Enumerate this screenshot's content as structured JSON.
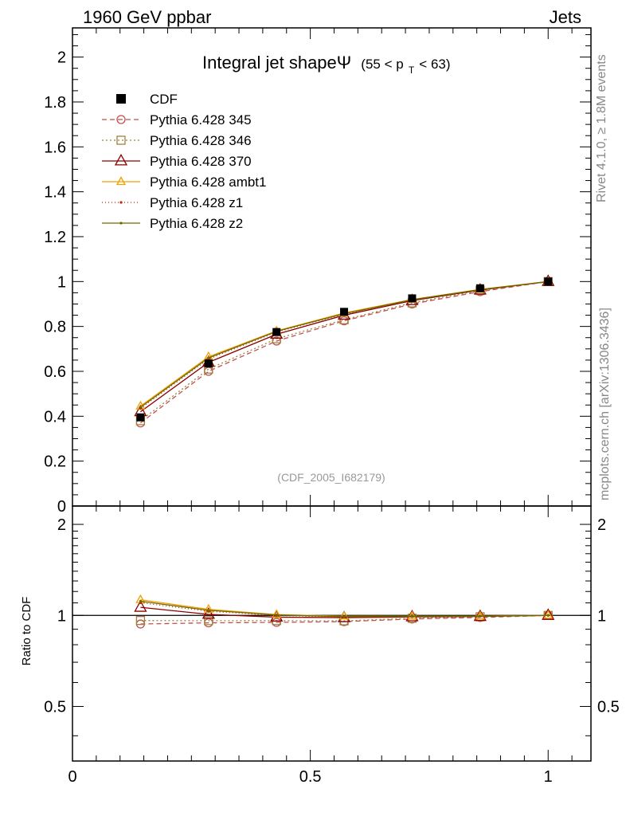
{
  "header": {
    "left": "1960 GeV ppbar",
    "right": "Jets"
  },
  "side": {
    "rivet": "Rivet 4.1.0, ≥ 1.8M events",
    "mcplots": "mcplots.cern.ch [arXiv:1306.3436]"
  },
  "chart_data": {
    "type": "line",
    "title_main": "Integral jet shapeΨ",
    "title_range_open": "(55 < p",
    "title_sub": "T",
    "title_range_close": " < 63)",
    "watermark": "(CDF_2005_I682179)",
    "x": [
      0.143,
      0.286,
      0.429,
      0.571,
      0.714,
      0.857,
      1.0
    ],
    "xlim": [
      0,
      1.09
    ],
    "xticks": [
      "0",
      "0.5",
      "1"
    ],
    "xtick_values": [
      0,
      0.5,
      1
    ],
    "main": {
      "ylim": [
        0,
        2.13
      ],
      "yticks": [
        "0",
        "0.2",
        "0.4",
        "0.6",
        "0.8",
        "1",
        "1.2",
        "1.4",
        "1.6",
        "1.8",
        "2"
      ],
      "ytick_values": [
        0,
        0.2,
        0.4,
        0.6,
        0.8,
        1.0,
        1.2,
        1.4,
        1.6,
        1.8,
        2.0
      ]
    },
    "ratio": {
      "ylabel": "Ratio to CDF",
      "ylim": [
        0.33,
        2.3
      ],
      "yticks": [
        "0.5",
        "1",
        "2"
      ],
      "ytick_values": [
        0.5,
        1,
        2
      ]
    },
    "data": {
      "name": "CDF",
      "values": [
        0.395,
        0.635,
        0.775,
        0.865,
        0.925,
        0.97,
        1.0
      ],
      "color": "#000000"
    },
    "series": [
      {
        "name": "Pythia 6.428 345",
        "color": "#c0504d",
        "dash": "6,4",
        "marker": "circle",
        "values": [
          0.37,
          0.6,
          0.735,
          0.825,
          0.9,
          0.955,
          1.0
        ]
      },
      {
        "name": "Pythia 6.428 346",
        "color": "#a08040",
        "dash": "2,3",
        "marker": "square",
        "values": [
          0.38,
          0.61,
          0.745,
          0.83,
          0.905,
          0.96,
          1.0
        ]
      },
      {
        "name": "Pythia 6.428 370",
        "color": "#8b0000",
        "dash": "",
        "marker": "triangle",
        "values": [
          0.42,
          0.64,
          0.765,
          0.85,
          0.915,
          0.962,
          1.0
        ]
      },
      {
        "name": "Pythia 6.428 ambt1",
        "color": "#f0a000",
        "dash": "",
        "marker": "triangle",
        "values": [
          0.445,
          0.665,
          0.78,
          0.86,
          0.92,
          0.965,
          1.0
        ]
      },
      {
        "name": "Pythia 6.428 z1",
        "color": "#cc2200",
        "dash": "1,3",
        "marker": "dot",
        "values": [
          0.435,
          0.655,
          0.775,
          0.855,
          0.918,
          0.963,
          1.0
        ]
      },
      {
        "name": "Pythia 6.428 z2",
        "color": "#6b6b00",
        "dash": "",
        "marker": "dot",
        "values": [
          0.44,
          0.66,
          0.778,
          0.857,
          0.919,
          0.964,
          1.0
        ]
      }
    ]
  }
}
